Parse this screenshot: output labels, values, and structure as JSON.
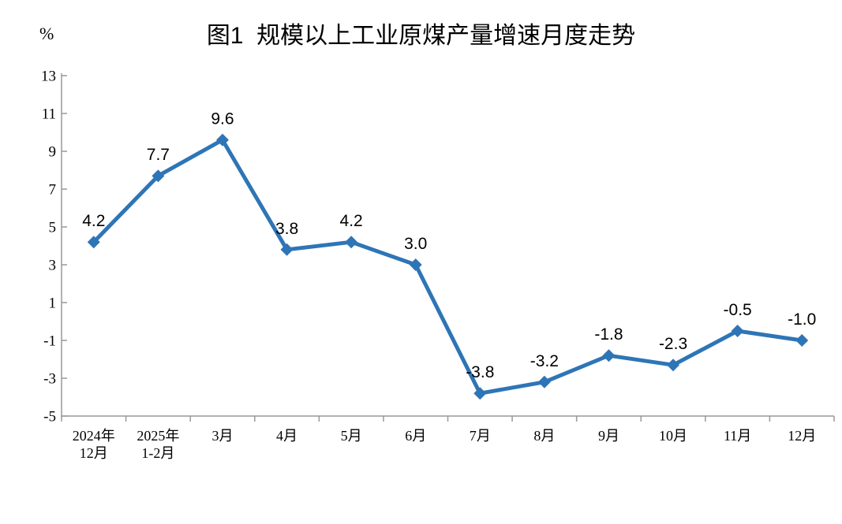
{
  "chart_data": {
    "type": "line",
    "title": "图1  规模以上工业原煤产量增速月度走势",
    "unit_label": "%",
    "categories": [
      [
        "2024年",
        "12月"
      ],
      [
        "2025年",
        "1-2月"
      ],
      [
        "3月"
      ],
      [
        "4月"
      ],
      [
        "5月"
      ],
      [
        "6月"
      ],
      [
        "7月"
      ],
      [
        "8月"
      ],
      [
        "9月"
      ],
      [
        "10月"
      ],
      [
        "11月"
      ],
      [
        "12月"
      ]
    ],
    "values": [
      4.2,
      7.7,
      9.6,
      3.8,
      4.2,
      3.0,
      -3.8,
      -3.2,
      -1.8,
      -2.3,
      -0.5,
      -1.0
    ],
    "data_labels": [
      "4.2",
      "7.7",
      "9.6",
      "3.8",
      "4.2",
      "3.0",
      "-3.8",
      "-3.2",
      "-1.8",
      "-2.3",
      "-0.5",
      "-1.0"
    ],
    "ylim": [
      -5,
      13
    ],
    "yticks": [
      -5,
      -3,
      -1,
      1,
      3,
      5,
      7,
      9,
      11,
      13
    ],
    "ytick_step": 2,
    "grid": false,
    "legend": "none",
    "marker_shape": "diamond",
    "line_color": "#2E75B6",
    "axis_color": "#999999",
    "label_color": "#000000"
  }
}
